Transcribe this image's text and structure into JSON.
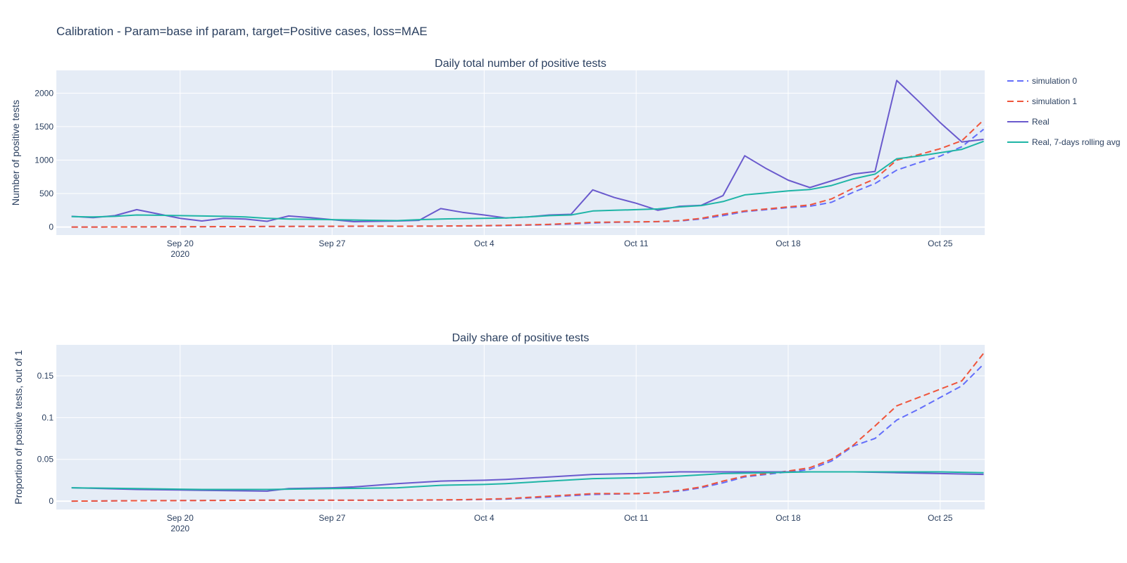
{
  "title": "Calibration - Param=base inf param, target=Positive cases, loss=MAE",
  "colors": {
    "plot_bg": "#E5ECF6",
    "grid": "#ffffff",
    "text": "#2a3f5f",
    "simulation_0": "#636EFA",
    "simulation_1": "#EF553B",
    "real": "#6A5ACD",
    "rolling": "#1FB5A6"
  },
  "legend": {
    "position": "right",
    "items": [
      {
        "label": "simulation 0",
        "dash": "dash",
        "color_key": "simulation_0"
      },
      {
        "label": "simulation 1",
        "dash": "dash",
        "color_key": "simulation_1"
      },
      {
        "label": "Real",
        "dash": "solid",
        "color_key": "real"
      },
      {
        "label": "Real, 7-days rolling avg",
        "dash": "solid",
        "color_key": "rolling"
      }
    ]
  },
  "chart_data": [
    {
      "type": "line",
      "title": "Daily total number of positive tests",
      "xlabel": "",
      "ylabel": "Number of positive tests",
      "xlim": [
        "2020-09-15",
        "2020-10-27"
      ],
      "ylim": [
        -120,
        2340
      ],
      "x_ticks": [
        {
          "date": "2020-09-20",
          "label": "Sep 20",
          "sub": "2020"
        },
        {
          "date": "2020-09-27",
          "label": "Sep 27",
          "sub": ""
        },
        {
          "date": "2020-10-04",
          "label": "Oct 4",
          "sub": ""
        },
        {
          "date": "2020-10-11",
          "label": "Oct 11",
          "sub": ""
        },
        {
          "date": "2020-10-18",
          "label": "Oct 18",
          "sub": ""
        },
        {
          "date": "2020-10-25",
          "label": "Oct 25",
          "sub": ""
        }
      ],
      "y_ticks": [
        {
          "value": 0,
          "label": "0"
        },
        {
          "value": 500,
          "label": "500"
        },
        {
          "value": 1000,
          "label": "1000"
        },
        {
          "value": 1500,
          "label": "1500"
        },
        {
          "value": 2000,
          "label": "2000"
        }
      ],
      "series": [
        {
          "name": "simulation 0",
          "color_key": "simulation_0",
          "dash": "dash",
          "x": [
            "2020-09-15",
            "2020-09-16",
            "2020-09-17",
            "2020-09-18",
            "2020-09-19",
            "2020-09-20",
            "2020-09-21",
            "2020-09-22",
            "2020-09-23",
            "2020-09-24",
            "2020-09-25",
            "2020-09-26",
            "2020-09-27",
            "2020-09-28",
            "2020-09-29",
            "2020-09-30",
            "2020-10-01",
            "2020-10-02",
            "2020-10-03",
            "2020-10-04",
            "2020-10-05",
            "2020-10-06",
            "2020-10-07",
            "2020-10-08",
            "2020-10-09",
            "2020-10-10",
            "2020-10-11",
            "2020-10-12",
            "2020-10-13",
            "2020-10-14",
            "2020-10-15",
            "2020-10-16",
            "2020-10-17",
            "2020-10-18",
            "2020-10-19",
            "2020-10-20",
            "2020-10-21",
            "2020-10-22",
            "2020-10-23",
            "2020-10-24",
            "2020-10-25",
            "2020-10-26",
            "2020-10-27"
          ],
          "y": [
            0,
            0,
            1,
            2,
            3,
            4,
            4,
            5,
            6,
            7,
            8,
            8,
            9,
            10,
            11,
            10,
            12,
            13,
            15,
            18,
            22,
            28,
            35,
            45,
            60,
            70,
            75,
            80,
            90,
            120,
            170,
            230,
            260,
            290,
            310,
            370,
            520,
            650,
            850,
            960,
            1060,
            1200,
            1460
          ]
        },
        {
          "name": "simulation 1",
          "color_key": "simulation_1",
          "dash": "dash",
          "x": [
            "2020-09-15",
            "2020-09-16",
            "2020-09-17",
            "2020-09-18",
            "2020-09-19",
            "2020-09-20",
            "2020-09-21",
            "2020-09-22",
            "2020-09-23",
            "2020-09-24",
            "2020-09-25",
            "2020-09-26",
            "2020-09-27",
            "2020-09-28",
            "2020-09-29",
            "2020-09-30",
            "2020-10-01",
            "2020-10-02",
            "2020-10-03",
            "2020-10-04",
            "2020-10-05",
            "2020-10-06",
            "2020-10-07",
            "2020-10-08",
            "2020-10-09",
            "2020-10-10",
            "2020-10-11",
            "2020-10-12",
            "2020-10-13",
            "2020-10-14",
            "2020-10-15",
            "2020-10-16",
            "2020-10-17",
            "2020-10-18",
            "2020-10-19",
            "2020-10-20",
            "2020-10-21",
            "2020-10-22",
            "2020-10-23",
            "2020-10-24",
            "2020-10-25",
            "2020-10-26",
            "2020-10-27"
          ],
          "y": [
            0,
            0,
            1,
            2,
            3,
            4,
            5,
            6,
            7,
            8,
            9,
            10,
            11,
            12,
            13,
            11,
            13,
            15,
            18,
            21,
            26,
            32,
            40,
            55,
            70,
            75,
            78,
            82,
            95,
            130,
            190,
            240,
            270,
            300,
            330,
            420,
            580,
            720,
            1000,
            1080,
            1170,
            1290,
            1600
          ]
        },
        {
          "name": "Real",
          "color_key": "real",
          "dash": "solid",
          "x": [
            "2020-09-15",
            "2020-09-16",
            "2020-09-17",
            "2020-09-18",
            "2020-09-20",
            "2020-09-21",
            "2020-09-22",
            "2020-09-23",
            "2020-09-24",
            "2020-09-25",
            "2020-09-26",
            "2020-09-27",
            "2020-09-28",
            "2020-09-29",
            "2020-09-30",
            "2020-10-01",
            "2020-10-02",
            "2020-10-03",
            "2020-10-04",
            "2020-10-05",
            "2020-10-06",
            "2020-10-07",
            "2020-10-08",
            "2020-10-09",
            "2020-10-10",
            "2020-10-11",
            "2020-10-12",
            "2020-10-13",
            "2020-10-14",
            "2020-10-15",
            "2020-10-16",
            "2020-10-17",
            "2020-10-18",
            "2020-10-19",
            "2020-10-20",
            "2020-10-21",
            "2020-10-22",
            "2020-10-23",
            "2020-10-24",
            "2020-10-25",
            "2020-10-26",
            "2020-10-27"
          ],
          "y": [
            160,
            140,
            170,
            260,
            130,
            90,
            130,
            120,
            85,
            165,
            140,
            110,
            80,
            85,
            90,
            100,
            275,
            220,
            180,
            135,
            150,
            180,
            190,
            555,
            440,
            355,
            250,
            310,
            325,
            470,
            1065,
            870,
            700,
            590,
            690,
            790,
            830,
            2190,
            1880,
            1560,
            1270,
            1310
          ]
        },
        {
          "name": "Real, 7-days rolling avg",
          "color_key": "rolling",
          "dash": "solid",
          "x": [
            "2020-09-15",
            "2020-09-16",
            "2020-09-17",
            "2020-09-18",
            "2020-09-19",
            "2020-09-20",
            "2020-09-21",
            "2020-09-22",
            "2020-09-23",
            "2020-09-24",
            "2020-09-25",
            "2020-09-26",
            "2020-09-27",
            "2020-09-28",
            "2020-09-29",
            "2020-09-30",
            "2020-10-01",
            "2020-10-02",
            "2020-10-03",
            "2020-10-04",
            "2020-10-05",
            "2020-10-06",
            "2020-10-07",
            "2020-10-08",
            "2020-10-09",
            "2020-10-10",
            "2020-10-11",
            "2020-10-12",
            "2020-10-13",
            "2020-10-14",
            "2020-10-15",
            "2020-10-16",
            "2020-10-17",
            "2020-10-18",
            "2020-10-19",
            "2020-10-20",
            "2020-10-21",
            "2020-10-22",
            "2020-10-23",
            "2020-10-24",
            "2020-10-25",
            "2020-10-26",
            "2020-10-27"
          ],
          "y": [
            155,
            150,
            160,
            180,
            175,
            170,
            165,
            160,
            150,
            130,
            120,
            115,
            110,
            105,
            100,
            95,
            110,
            120,
            125,
            130,
            135,
            150,
            170,
            180,
            240,
            250,
            260,
            270,
            300,
            320,
            380,
            480,
            510,
            540,
            560,
            620,
            720,
            790,
            1020,
            1060,
            1110,
            1160,
            1280
          ]
        }
      ]
    },
    {
      "type": "line",
      "title": "Daily share of positive tests",
      "xlabel": "",
      "ylabel": "Proportion of positive tests, out of 1",
      "xlim": [
        "2020-09-15",
        "2020-10-27"
      ],
      "ylim": [
        -0.01,
        0.187
      ],
      "x_ticks": [
        {
          "date": "2020-09-20",
          "label": "Sep 20",
          "sub": "2020"
        },
        {
          "date": "2020-09-27",
          "label": "Sep 27",
          "sub": ""
        },
        {
          "date": "2020-10-04",
          "label": "Oct 4",
          "sub": ""
        },
        {
          "date": "2020-10-11",
          "label": "Oct 11",
          "sub": ""
        },
        {
          "date": "2020-10-18",
          "label": "Oct 18",
          "sub": ""
        },
        {
          "date": "2020-10-25",
          "label": "Oct 25",
          "sub": ""
        }
      ],
      "y_ticks": [
        {
          "value": 0,
          "label": "0"
        },
        {
          "value": 0.05,
          "label": "0.05"
        },
        {
          "value": 0.1,
          "label": "0.1"
        },
        {
          "value": 0.15,
          "label": "0.15"
        }
      ],
      "series": [
        {
          "name": "simulation 0",
          "color_key": "simulation_0",
          "dash": "dash",
          "x": [
            "2020-09-15",
            "2020-09-18",
            "2020-09-21",
            "2020-09-24",
            "2020-09-27",
            "2020-09-30",
            "2020-10-03",
            "2020-10-05",
            "2020-10-07",
            "2020-10-09",
            "2020-10-11",
            "2020-10-12",
            "2020-10-13",
            "2020-10-14",
            "2020-10-15",
            "2020-10-16",
            "2020-10-17",
            "2020-10-18",
            "2020-10-19",
            "2020-10-20",
            "2020-10-21",
            "2020-10-22",
            "2020-10-23",
            "2020-10-24",
            "2020-10-25",
            "2020-10-26",
            "2020-10-27"
          ],
          "y": [
            0,
            0.0005,
            0.0008,
            0.001,
            0.001,
            0.001,
            0.0015,
            0.0025,
            0.005,
            0.008,
            0.009,
            0.01,
            0.012,
            0.016,
            0.022,
            0.029,
            0.032,
            0.035,
            0.038,
            0.048,
            0.066,
            0.075,
            0.097,
            0.11,
            0.124,
            0.138,
            0.164
          ]
        },
        {
          "name": "simulation 1",
          "color_key": "simulation_1",
          "dash": "dash",
          "x": [
            "2020-09-15",
            "2020-09-18",
            "2020-09-21",
            "2020-09-24",
            "2020-09-27",
            "2020-09-30",
            "2020-10-03",
            "2020-10-05",
            "2020-10-07",
            "2020-10-09",
            "2020-10-11",
            "2020-10-12",
            "2020-10-13",
            "2020-10-14",
            "2020-10-15",
            "2020-10-16",
            "2020-10-17",
            "2020-10-18",
            "2020-10-19",
            "2020-10-20",
            "2020-10-21",
            "2020-10-22",
            "2020-10-23",
            "2020-10-24",
            "2020-10-25",
            "2020-10-26",
            "2020-10-27"
          ],
          "y": [
            0,
            0.0005,
            0.0008,
            0.0012,
            0.0012,
            0.0012,
            0.0018,
            0.003,
            0.006,
            0.009,
            0.009,
            0.01,
            0.013,
            0.017,
            0.024,
            0.03,
            0.033,
            0.036,
            0.04,
            0.05,
            0.067,
            0.09,
            0.114,
            0.124,
            0.134,
            0.144,
            0.177
          ]
        },
        {
          "name": "Real",
          "color_key": "real",
          "dash": "solid",
          "x": [
            "2020-09-15",
            "2020-09-18",
            "2020-09-21",
            "2020-09-24",
            "2020-09-25",
            "2020-09-27",
            "2020-09-28",
            "2020-09-30",
            "2020-10-02",
            "2020-10-04",
            "2020-10-05",
            "2020-10-07",
            "2020-10-09",
            "2020-10-11",
            "2020-10-12",
            "2020-10-13",
            "2020-10-15",
            "2020-10-17",
            "2020-10-19",
            "2020-10-21",
            "2020-10-23",
            "2020-10-25",
            "2020-10-27"
          ],
          "y": [
            0.016,
            0.014,
            0.013,
            0.012,
            0.015,
            0.016,
            0.017,
            0.021,
            0.024,
            0.025,
            0.026,
            0.029,
            0.032,
            0.033,
            0.034,
            0.035,
            0.035,
            0.035,
            0.035,
            0.035,
            0.034,
            0.033,
            0.032
          ]
        },
        {
          "name": "Real, 7-days rolling avg",
          "color_key": "rolling",
          "dash": "solid",
          "x": [
            "2020-09-15",
            "2020-09-18",
            "2020-09-21",
            "2020-09-24",
            "2020-09-27",
            "2020-09-30",
            "2020-10-02",
            "2020-10-04",
            "2020-10-05",
            "2020-10-07",
            "2020-10-09",
            "2020-10-11",
            "2020-10-12",
            "2020-10-13",
            "2020-10-15",
            "2020-10-17",
            "2020-10-19",
            "2020-10-21",
            "2020-10-23",
            "2020-10-25",
            "2020-10-27"
          ],
          "y": [
            0.016,
            0.015,
            0.014,
            0.014,
            0.015,
            0.016,
            0.019,
            0.02,
            0.021,
            0.024,
            0.027,
            0.028,
            0.029,
            0.03,
            0.033,
            0.034,
            0.035,
            0.035,
            0.035,
            0.035,
            0.034
          ]
        }
      ]
    }
  ]
}
